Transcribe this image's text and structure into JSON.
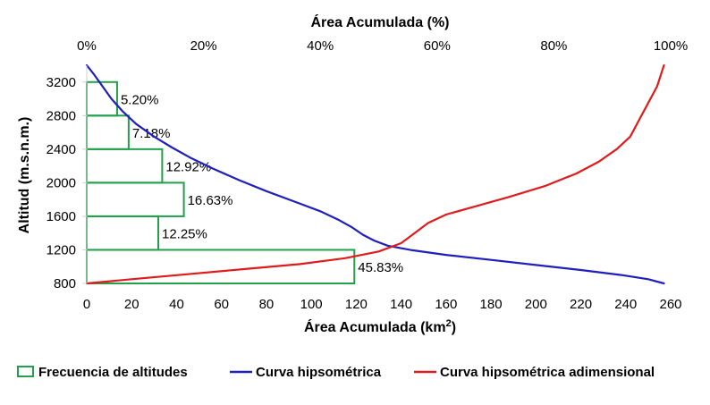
{
  "chart_data": {
    "type": "bar+line",
    "top_axis": {
      "title": "Área Acumulada (%)",
      "ticks": [
        "0%",
        "20%",
        "40%",
        "60%",
        "80%",
        "100%"
      ],
      "range": [
        0,
        100
      ]
    },
    "bottom_axis": {
      "title_main": "Área Acumulada (km",
      "title_sup": "2",
      "title_end": ")",
      "ticks": [
        "0",
        "20",
        "40",
        "60",
        "80",
        "100",
        "120",
        "140",
        "160",
        "180",
        "200",
        "220",
        "240",
        "260"
      ],
      "range": [
        0,
        260
      ]
    },
    "y_axis": {
      "title": "Altitud (m.s.n.m.)",
      "ticks": [
        "800",
        "1200",
        "1600",
        "2000",
        "2400",
        "2800",
        "3200"
      ],
      "range": [
        800,
        3400
      ]
    },
    "bars": {
      "name": "Frecuencia de altitudes",
      "color": "#22a04b",
      "items": [
        {
          "alt_low": 800,
          "alt_high": 1200,
          "percent": 45.83,
          "label": "45.83%"
        },
        {
          "alt_low": 1200,
          "alt_high": 1600,
          "percent": 12.25,
          "label": "12.25%"
        },
        {
          "alt_low": 1600,
          "alt_high": 2000,
          "percent": 16.63,
          "label": "16.63%"
        },
        {
          "alt_low": 2000,
          "alt_high": 2400,
          "percent": 12.92,
          "label": "12.92%"
        },
        {
          "alt_low": 2400,
          "alt_high": 2800,
          "percent": 7.18,
          "label": "7.18%"
        },
        {
          "alt_low": 2800,
          "alt_high": 3200,
          "percent": 5.2,
          "label": "5.20%"
        }
      ]
    },
    "series": [
      {
        "name": "Curva hipsométrica",
        "color": "#1f1fbf",
        "axis": "km2",
        "points": [
          [
            0,
            3400
          ],
          [
            3,
            3300
          ],
          [
            7,
            3150
          ],
          [
            11,
            3000
          ],
          [
            16,
            2850
          ],
          [
            22,
            2700
          ],
          [
            30,
            2550
          ],
          [
            38,
            2420
          ],
          [
            46,
            2300
          ],
          [
            56,
            2170
          ],
          [
            68,
            2030
          ],
          [
            80,
            1900
          ],
          [
            94,
            1760
          ],
          [
            104,
            1660
          ],
          [
            112,
            1560
          ],
          [
            118,
            1470
          ],
          [
            123,
            1380
          ],
          [
            128,
            1310
          ],
          [
            134,
            1250
          ],
          [
            145,
            1195
          ],
          [
            160,
            1140
          ],
          [
            180,
            1080
          ],
          [
            200,
            1020
          ],
          [
            220,
            960
          ],
          [
            238,
            900
          ],
          [
            250,
            850
          ],
          [
            257,
            800
          ]
        ]
      },
      {
        "name": "Curva hipsométrica adimensional",
        "color": "#e01b1b",
        "axis": "km2",
        "points": [
          [
            0,
            800
          ],
          [
            20,
            850
          ],
          [
            45,
            910
          ],
          [
            70,
            970
          ],
          [
            95,
            1030
          ],
          [
            115,
            1100
          ],
          [
            130,
            1180
          ],
          [
            140,
            1280
          ],
          [
            146,
            1400
          ],
          [
            152,
            1520
          ],
          [
            160,
            1620
          ],
          [
            172,
            1710
          ],
          [
            188,
            1830
          ],
          [
            204,
            1960
          ],
          [
            218,
            2110
          ],
          [
            228,
            2250
          ],
          [
            236,
            2400
          ],
          [
            242,
            2550
          ],
          [
            246,
            2750
          ],
          [
            250,
            2950
          ],
          [
            254,
            3150
          ],
          [
            257,
            3400
          ]
        ]
      }
    ],
    "legend": {
      "position": "bottom",
      "items": [
        {
          "label": "Frecuencia de altitudes",
          "kind": "box",
          "color": "#22a04b"
        },
        {
          "label": "Curva hipsométrica",
          "kind": "line",
          "color": "#1f1fbf"
        },
        {
          "label": "Curva hipsométrica adimensional",
          "kind": "line",
          "color": "#e01b1b"
        }
      ]
    }
  }
}
